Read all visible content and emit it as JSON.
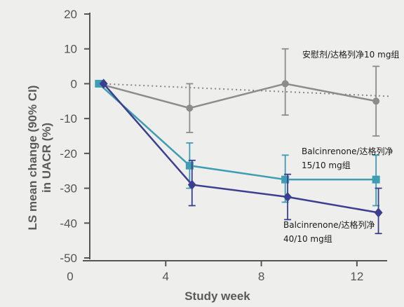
{
  "chart_data": {
    "type": "line",
    "xlabel": "Study week",
    "ylabel_line1": "LS mean change (90% CI)",
    "ylabel_line2": "in UACR (%)",
    "xlim": [
      0,
      13.5
    ],
    "ylim": [
      -50,
      20
    ],
    "x_ticks": [
      0,
      4,
      8,
      12
    ],
    "y_ticks": [
      20,
      10,
      0,
      -10,
      -20,
      -30,
      -40,
      -50
    ],
    "reference_line_y": 0,
    "colors": {
      "axis": "#555555",
      "tick_text": "#555555",
      "reference": "#888888"
    },
    "series": [
      {
        "label_lines": [
          "安慰剂/达格列净10 mg组"
        ],
        "color": "#8c8c8c",
        "marker": "circle",
        "points": [
          {
            "x": 1.2,
            "y": 0,
            "lo": 0,
            "hi": 0
          },
          {
            "x": 5,
            "y": -7,
            "lo": -14,
            "hi": 0
          },
          {
            "x": 9,
            "y": 0,
            "lo": -9,
            "hi": 10
          },
          {
            "x": 12.8,
            "y": -5,
            "lo": -15,
            "hi": 5
          }
        ]
      },
      {
        "label_lines": [
          "Balcinrenone/达格列净",
          "15/10 mg组"
        ],
        "color": "#3e9db3",
        "marker": "square",
        "points": [
          {
            "x": 1.2,
            "y": 0,
            "lo": 0,
            "hi": 0
          },
          {
            "x": 5,
            "y": -23.5,
            "lo": -30,
            "hi": -17
          },
          {
            "x": 9,
            "y": -27.5,
            "lo": -34,
            "hi": -20.5
          },
          {
            "x": 12.8,
            "y": -27.5,
            "lo": -35,
            "hi": -20.5
          }
        ]
      },
      {
        "label_lines": [
          "Balcinrenone/达格列净",
          "40/10 mg组"
        ],
        "color": "#3b3f8f",
        "marker": "diamond",
        "points": [
          {
            "x": 1.4,
            "y": 0,
            "lo": 0,
            "hi": 0
          },
          {
            "x": 5.1,
            "y": -29,
            "lo": -35,
            "hi": -22
          },
          {
            "x": 9.1,
            "y": -32.5,
            "lo": -39,
            "hi": -26
          },
          {
            "x": 12.9,
            "y": -37,
            "lo": -43,
            "hi": -30
          }
        ]
      }
    ]
  }
}
